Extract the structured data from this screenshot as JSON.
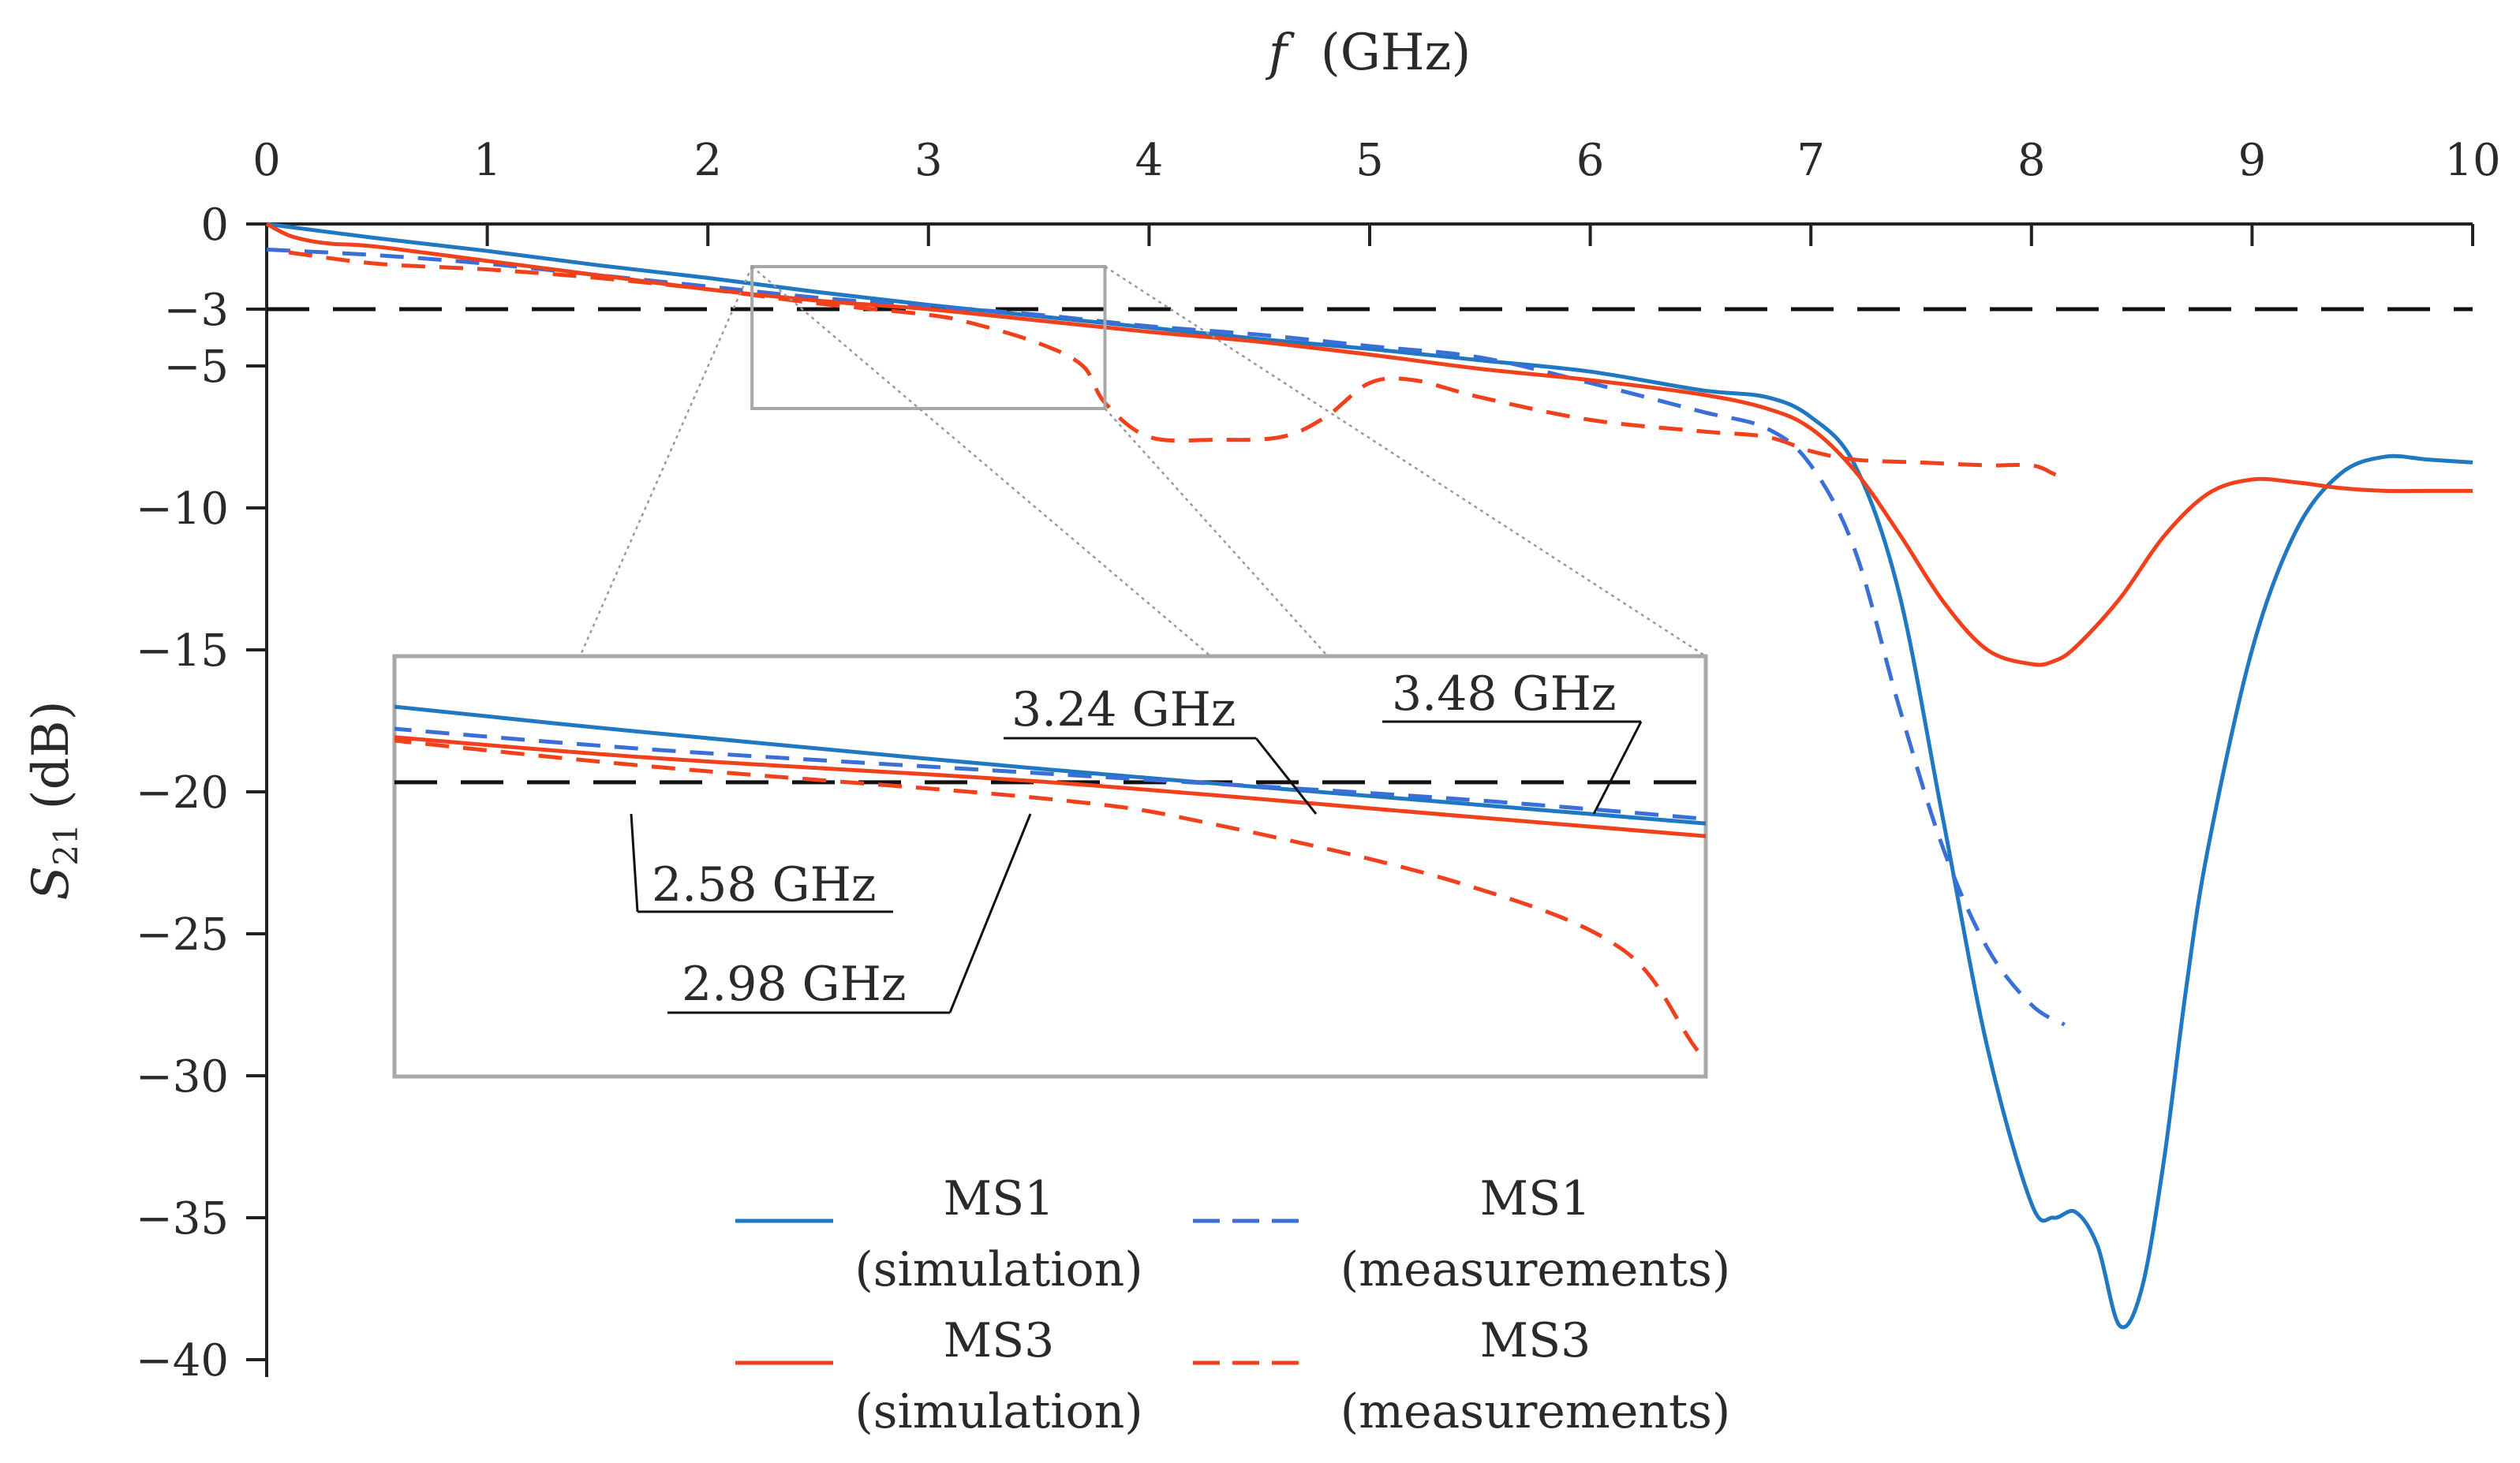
{
  "chart_data": {
    "type": "line",
    "xlabel_italic": "f",
    "xlabel_unit": "(GHz)",
    "ylabel_symbol": "S",
    "ylabel_subscript": "21",
    "ylabel_unit": "(dB)",
    "xlim": [
      0,
      10
    ],
    "ylim": [
      -40,
      0
    ],
    "x_ticks": [
      "0",
      "1",
      "2",
      "3",
      "4",
      "5",
      "6",
      "7",
      "8",
      "9",
      "10"
    ],
    "y_ticks": [
      {
        "value": 0,
        "label": "0"
      },
      {
        "value": -3,
        "label": "−3"
      },
      {
        "value": -5,
        "label": "−5"
      },
      {
        "value": -10,
        "label": "−10"
      },
      {
        "value": -15,
        "label": "−15"
      },
      {
        "value": -20,
        "label": "−20"
      },
      {
        "value": -25,
        "label": "−25"
      },
      {
        "value": -30,
        "label": "−30"
      },
      {
        "value": -35,
        "label": "−35"
      },
      {
        "value": -40,
        "label": "−40"
      }
    ],
    "grid": false,
    "legend_position": "bottom-center",
    "threshold_db": -3,
    "zoom_region": {
      "x": [
        2.2,
        3.8
      ],
      "y": [
        -6.5,
        -1.5
      ]
    },
    "series": [
      {
        "name_line1": "MS1",
        "name_line2": "(simulation)",
        "color": "#1f78c1",
        "dash": "solid",
        "x": [
          0,
          0.5,
          1,
          1.5,
          2,
          2.5,
          3,
          3.5,
          4,
          4.5,
          5,
          5.5,
          6,
          6.5,
          6.8,
          7.0,
          7.2,
          7.4,
          7.6,
          7.8,
          8.0,
          8.1,
          8.2,
          8.3,
          8.4,
          8.5,
          8.6,
          8.7,
          8.8,
          9.0,
          9.2,
          9.4,
          9.6,
          9.8,
          10
        ],
        "y": [
          0,
          -0.5,
          -0.95,
          -1.45,
          -1.9,
          -2.4,
          -2.85,
          -3.25,
          -3.65,
          -4.05,
          -4.4,
          -4.8,
          -5.2,
          -5.85,
          -6.1,
          -6.8,
          -8.5,
          -13,
          -21,
          -29,
          -34.5,
          -35.0,
          -34.8,
          -36.0,
          -38.8,
          -37.5,
          -33,
          -27,
          -22,
          -15,
          -10.8,
          -8.8,
          -8.2,
          -8.3,
          -8.4
        ]
      },
      {
        "name_line1": "MS1",
        "name_line2": "(measurements)",
        "color": "#3a6fd8",
        "dash": "dashed",
        "x": [
          0,
          0.5,
          1,
          1.5,
          2,
          2.5,
          3,
          3.5,
          4,
          4.5,
          5,
          5.5,
          6,
          6.5,
          6.8,
          7.0,
          7.2,
          7.4,
          7.6,
          7.8,
          8.0,
          8.15
        ],
        "y": [
          -0.9,
          -1.1,
          -1.4,
          -1.8,
          -2.2,
          -2.6,
          -2.9,
          -3.2,
          -3.6,
          -3.9,
          -4.3,
          -4.7,
          -5.6,
          -6.6,
          -7.2,
          -8.5,
          -11.5,
          -17,
          -22,
          -25.5,
          -27.5,
          -28.2
        ]
      },
      {
        "name_line1": "MS3",
        "name_line2": "(simulation)",
        "color": "#f0401c",
        "dash": "solid",
        "x": [
          0,
          0.1,
          0.2,
          0.3,
          0.5,
          1,
          1.5,
          2,
          2.5,
          3,
          3.5,
          4,
          4.5,
          5,
          5.5,
          6,
          6.5,
          6.8,
          7.0,
          7.2,
          7.4,
          7.6,
          7.8,
          8.0,
          8.1,
          8.2,
          8.4,
          8.6,
          8.8,
          9.0,
          9.2,
          9.4,
          9.6,
          9.8,
          10
        ],
        "y": [
          0,
          -0.4,
          -0.6,
          -0.7,
          -0.8,
          -1.3,
          -1.8,
          -2.3,
          -2.7,
          -3.0,
          -3.4,
          -3.8,
          -4.15,
          -4.6,
          -5.1,
          -5.5,
          -6.0,
          -6.5,
          -7.2,
          -8.7,
          -10.9,
          -13.3,
          -15.0,
          -15.5,
          -15.4,
          -14.9,
          -13.2,
          -11.0,
          -9.5,
          -9.0,
          -9.1,
          -9.3,
          -9.4,
          -9.4,
          -9.4
        ]
      },
      {
        "name_line1": "MS3",
        "name_line2": "(measurements)",
        "color": "#f0401c",
        "dash": "dashed",
        "x": [
          0.1,
          0.5,
          1,
          1.5,
          2,
          2.5,
          3,
          3.2,
          3.5,
          3.7,
          3.8,
          4.0,
          4.3,
          4.6,
          4.8,
          5.0,
          5.2,
          5.5,
          6.0,
          6.5,
          6.8,
          7.0,
          7.2,
          7.5,
          7.8,
          8.0,
          8.1,
          8.15
        ],
        "y": [
          -1.0,
          -1.4,
          -1.6,
          -1.9,
          -2.3,
          -2.8,
          -3.2,
          -3.5,
          -4.2,
          -5.0,
          -6.3,
          -7.5,
          -7.6,
          -7.5,
          -6.8,
          -5.6,
          -5.5,
          -6.1,
          -6.9,
          -7.3,
          -7.5,
          -8.0,
          -8.3,
          -8.4,
          -8.5,
          -8.5,
          -8.8,
          -9.0
        ]
      }
    ],
    "annotations": [
      {
        "text": "3.24 GHz",
        "x": 3.24
      },
      {
        "text": "3.48 GHz",
        "x": 3.48
      },
      {
        "text": "2.58 GHz",
        "x": 2.58
      },
      {
        "text": "2.98 GHz",
        "x": 2.98
      }
    ]
  }
}
